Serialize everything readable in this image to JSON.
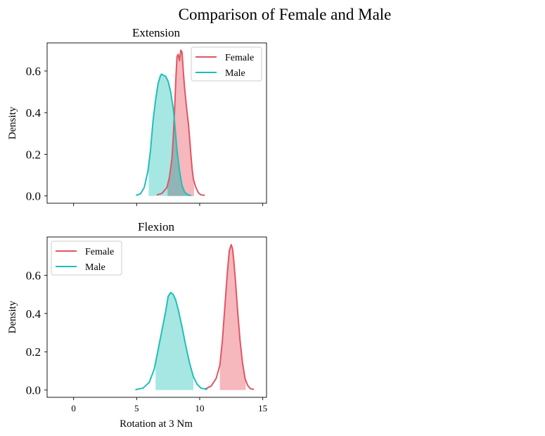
{
  "suptitle": "Comparison of Female and Male",
  "colors": {
    "female_line": "#e05663",
    "female_fill": "#f5b3b9",
    "male_line": "#1fbfb8",
    "male_fill": "#a1e6e2",
    "overlap_fill": "#8fb5b6"
  },
  "chart_data": [
    {
      "type": "line",
      "title": "Extension",
      "xlabel": "",
      "ylabel": "Density",
      "xlim": [
        -2.1,
        15.3
      ],
      "ylim": [
        -0.035,
        0.735
      ],
      "xticks": [
        0,
        5,
        10,
        15
      ],
      "xtick_labels_visible": false,
      "yticks": [
        0.0,
        0.2,
        0.4,
        0.6
      ],
      "ytick_labels": [
        "0.0",
        "0.2",
        "0.4",
        "0.6"
      ],
      "legend": {
        "position": "top-right",
        "entries": [
          "Female",
          "Male"
        ]
      },
      "series": [
        {
          "name": "Female",
          "color_key": "female",
          "shade_range": [
            7.45,
            9.55
          ],
          "x": [
            6.6,
            7.0,
            7.4,
            7.6,
            7.8,
            7.9,
            8.0,
            8.1,
            8.2,
            8.3,
            8.4,
            8.5,
            8.6,
            8.7,
            8.8,
            8.9,
            9.0,
            9.1,
            9.2,
            9.3,
            9.4,
            9.5,
            9.7,
            9.9,
            10.1,
            10.4
          ],
          "values": [
            0.005,
            0.012,
            0.04,
            0.09,
            0.18,
            0.28,
            0.4,
            0.55,
            0.67,
            0.68,
            0.65,
            0.7,
            0.69,
            0.6,
            0.52,
            0.46,
            0.4,
            0.35,
            0.28,
            0.2,
            0.13,
            0.08,
            0.04,
            0.015,
            0.005,
            0.003
          ]
        },
        {
          "name": "Male",
          "color_key": "male",
          "shade_range": [
            5.95,
            9.5
          ],
          "x": [
            4.95,
            5.3,
            5.6,
            5.9,
            6.1,
            6.3,
            6.5,
            6.7,
            6.9,
            7.0,
            7.1,
            7.3,
            7.5,
            7.7,
            7.8,
            7.9,
            8.0,
            8.2,
            8.4,
            8.6,
            8.8,
            9.0,
            9.3
          ],
          "values": [
            0.003,
            0.01,
            0.04,
            0.12,
            0.22,
            0.36,
            0.46,
            0.54,
            0.58,
            0.585,
            0.58,
            0.575,
            0.55,
            0.5,
            0.46,
            0.42,
            0.36,
            0.22,
            0.12,
            0.05,
            0.02,
            0.008,
            0.002
          ]
        }
      ]
    },
    {
      "type": "line",
      "title": "Flexion",
      "xlabel": "Rotation at 3 Nm",
      "ylabel": "Density",
      "xlim": [
        -2.1,
        15.3
      ],
      "ylim": [
        -0.038,
        0.8
      ],
      "xticks": [
        0,
        5,
        10,
        15
      ],
      "xtick_labels": [
        "0",
        "5",
        "10",
        "15"
      ],
      "yticks": [
        0.0,
        0.2,
        0.4,
        0.6
      ],
      "ytick_labels": [
        "0.0",
        "0.2",
        "0.4",
        "0.6"
      ],
      "legend": {
        "position": "top-left",
        "entries": [
          "Female",
          "Male"
        ]
      },
      "series": [
        {
          "name": "Female",
          "color_key": "female",
          "shade_range": [
            11.6,
            13.65
          ],
          "x": [
            10.4,
            10.9,
            11.3,
            11.6,
            11.8,
            12.0,
            12.2,
            12.35,
            12.5,
            12.6,
            12.7,
            12.85,
            13.0,
            13.2,
            13.4,
            13.6,
            13.8,
            14.0,
            14.3
          ],
          "values": [
            0.005,
            0.02,
            0.06,
            0.13,
            0.26,
            0.44,
            0.62,
            0.73,
            0.76,
            0.74,
            0.68,
            0.56,
            0.42,
            0.26,
            0.14,
            0.06,
            0.025,
            0.008,
            0.003
          ]
        },
        {
          "name": "Male",
          "color_key": "male",
          "shade_range": [
            6.5,
            9.5
          ],
          "x": [
            4.9,
            5.5,
            6.0,
            6.4,
            6.7,
            7.0,
            7.3,
            7.5,
            7.7,
            7.9,
            8.1,
            8.3,
            8.6,
            8.9,
            9.2,
            9.5,
            9.8,
            10.1,
            10.6
          ],
          "values": [
            0.002,
            0.01,
            0.04,
            0.11,
            0.21,
            0.31,
            0.41,
            0.49,
            0.51,
            0.5,
            0.47,
            0.42,
            0.33,
            0.23,
            0.14,
            0.07,
            0.03,
            0.01,
            0.003
          ]
        }
      ]
    }
  ]
}
